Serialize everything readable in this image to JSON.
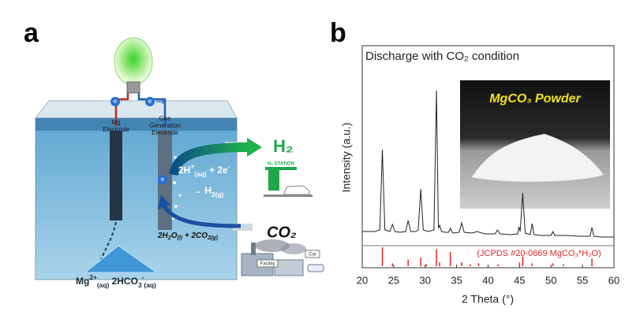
{
  "panel_labels": [
    "a",
    "b"
  ],
  "diagram": {
    "electron_labels": [
      "e",
      "e",
      "e"
    ],
    "mg_electrode": [
      "Mg",
      "Electrode"
    ],
    "gas_electrode": [
      "Gas",
      "Generation",
      "Electrode"
    ],
    "h2_label": "H₂",
    "h2_station": "H₂ STATION",
    "h2_reaction": [
      [
        {
          "text": "2H"
        },
        {
          "text": "+",
          "script": "sup"
        },
        {
          "text": "(aq)",
          "script": "sub"
        },
        {
          "text": " + 2e"
        },
        {
          "text": "-",
          "script": "sup"
        }
      ],
      [
        {
          "text": "→ H"
        },
        {
          "text": "2(g)",
          "script": "sub"
        }
      ]
    ],
    "water_reaction": [
      {
        "text": "2H"
      },
      {
        "text": "2",
        "script": "sub"
      },
      {
        "text": "O"
      },
      {
        "text": "(l)",
        "script": "sub"
      },
      {
        "text": " + 2CO"
      },
      {
        "text": "2(g)",
        "script": "sub"
      }
    ],
    "co2_label": "CO₂",
    "mg_products": [
      {
        "text": "Mg"
      },
      {
        "text": "2+",
        "script": "sup"
      },
      {
        "text": "(aq)",
        "script": "sub"
      },
      {
        "text": " 2HCO"
      },
      {
        "text": "3",
        "script": "sub"
      },
      {
        "text": "-",
        "script": "sup"
      },
      {
        "text": "(aq)",
        "script": "sub"
      }
    ],
    "facility": "Facility",
    "car": "Car"
  },
  "chart_data": [
    {
      "type": "line",
      "title": "Discharge with CO₂ condition",
      "xlabel": "2 Theta (°)",
      "ylabel": "Intensity (a.u.)",
      "inset_label": "MgCO₃ Powder",
      "color": "#222222",
      "x": [
        20,
        21,
        22,
        22.8,
        23.2,
        23.6,
        24.4,
        24.8,
        25.2,
        26,
        26.9,
        27.3,
        27.7,
        28.5,
        28.9,
        29.3,
        29.7,
        30.5,
        31.4,
        31.8,
        32.1,
        32.3,
        32.6,
        33.2,
        33.7,
        34.0,
        34.4,
        35.4,
        35.8,
        36.2,
        37.5,
        38.2,
        39.5,
        41.1,
        41.5,
        41.9,
        43.5,
        44.7,
        44.9,
        45.1,
        45.5,
        45.9,
        46.7,
        47.0,
        47.3,
        48.5,
        50.0,
        50.3,
        50.6,
        52.5,
        54.5,
        56.2,
        56.5,
        56.8,
        58,
        60
      ],
      "values": [
        8,
        8,
        8,
        9,
        60,
        9,
        8,
        12.5,
        8,
        7.5,
        8,
        15,
        8,
        8,
        9,
        35,
        9,
        8,
        9,
        97.5,
        10,
        12,
        8,
        7.5,
        7.5,
        10,
        7,
        7.5,
        13.5,
        7.5,
        7,
        8,
        6.5,
        6.5,
        9,
        6.5,
        6,
        6.5,
        11,
        8,
        32.5,
        7,
        6,
        13,
        6,
        5.5,
        5.5,
        8,
        5.5,
        5.5,
        5,
        5,
        10.5,
        5,
        4.5,
        4.5
      ],
      "xlim": [
        20,
        60
      ],
      "ylim": [
        0,
        100
      ],
      "xticks": [
        20,
        25,
        30,
        35,
        40,
        45,
        50,
        55,
        60
      ]
    },
    {
      "type": "stem",
      "label": "(JCPDS #20-0669 MgCO₃*H₂O)",
      "color": "#e0262a",
      "x": [
        23.2,
        24.8,
        27.3,
        29.3,
        30.2,
        31.8,
        32.3,
        34.0,
        35.8,
        37.2,
        38.5,
        41.6,
        45.0,
        45.5,
        47.0,
        50.3,
        52.0,
        56.5
      ],
      "values": [
        100,
        15,
        35,
        45,
        10,
        90,
        20,
        75,
        20,
        10,
        15,
        10,
        20,
        50,
        15,
        15,
        10,
        40
      ],
      "xlim": [
        20,
        60
      ],
      "ylim": [
        0,
        100
      ]
    }
  ]
}
